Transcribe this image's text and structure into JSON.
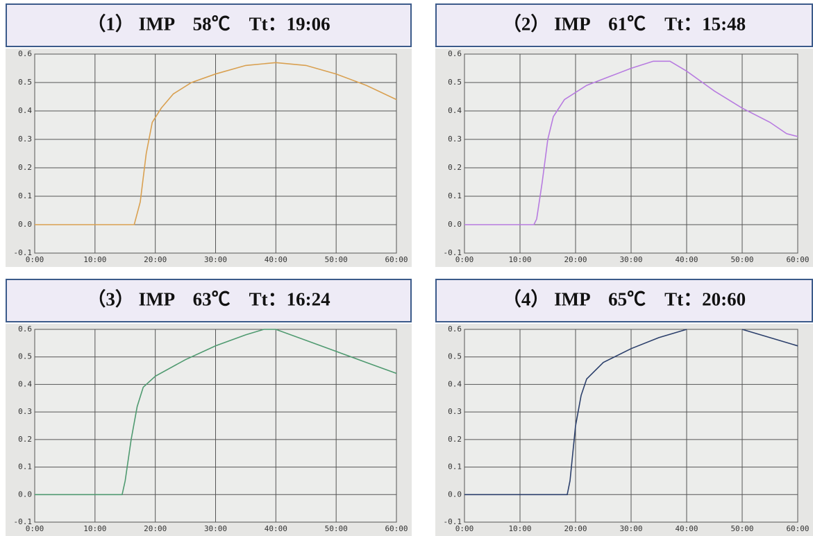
{
  "chart_data": [
    {
      "type": "line",
      "title": "（1） IMP　58℃　Tt：19:06",
      "color": "#d9a050",
      "grid": true,
      "x": [
        0,
        5,
        10,
        15,
        16.5,
        17.5,
        18.5,
        19.5,
        21,
        23,
        26,
        30,
        35,
        40,
        45,
        50,
        55,
        60
      ],
      "values": [
        0,
        0,
        0,
        0,
        0,
        0.08,
        0.25,
        0.36,
        0.41,
        0.46,
        0.5,
        0.53,
        0.56,
        0.57,
        0.56,
        0.53,
        0.49,
        0.44
      ],
      "xlim": [
        0,
        60
      ],
      "ylim": [
        -0.1,
        0.6
      ],
      "xticks": [
        {
          "value": 0,
          "label": "0:00"
        },
        {
          "value": 10,
          "label": "10:00"
        },
        {
          "value": 20,
          "label": "20:00"
        },
        {
          "value": 30,
          "label": "30:00"
        },
        {
          "value": 40,
          "label": "40:00"
        },
        {
          "value": 50,
          "label": "50:00"
        },
        {
          "value": 60,
          "label": "60:00"
        }
      ],
      "yticks": [
        -0.1,
        {
          "value": 0,
          "label": "0.0"
        },
        0.1,
        0.2,
        0.3,
        0.4,
        0.5,
        0.6
      ]
    },
    {
      "type": "line",
      "title": "（2） IMP　61℃　Tt：15:48",
      "color": "#b77be0",
      "grid": true,
      "x": [
        0,
        5,
        10,
        12.5,
        13,
        14,
        15,
        16,
        18,
        22,
        26,
        30,
        34,
        37,
        40,
        45,
        50,
        55,
        58,
        60
      ],
      "values": [
        0,
        0,
        0,
        0,
        0.02,
        0.15,
        0.3,
        0.38,
        0.44,
        0.49,
        0.52,
        0.55,
        0.575,
        0.575,
        0.54,
        0.47,
        0.41,
        0.36,
        0.32,
        0.31
      ],
      "xlim": [
        0,
        60
      ],
      "ylim": [
        -0.1,
        0.6
      ],
      "xticks": [
        {
          "value": 0,
          "label": "0:00"
        },
        {
          "value": 10,
          "label": "10:00"
        },
        {
          "value": 20,
          "label": "20:00"
        },
        {
          "value": 30,
          "label": "30:00"
        },
        {
          "value": 40,
          "label": "40:00"
        },
        {
          "value": 50,
          "label": "50:00"
        },
        {
          "value": 60,
          "label": "60:00"
        }
      ],
      "yticks": [
        -0.1,
        {
          "value": 0,
          "label": "0.0"
        },
        0.1,
        0.2,
        0.3,
        0.4,
        0.5,
        0.6
      ]
    },
    {
      "type": "line",
      "title": "（3） IMP　63℃　Tt：16:24",
      "color": "#4f9a70",
      "grid": true,
      "x": [
        0,
        5,
        10,
        14.5,
        15,
        16,
        17,
        18,
        20,
        25,
        30,
        35,
        38,
        40,
        45,
        50,
        55,
        60
      ],
      "values": [
        0,
        0,
        0,
        0,
        0.05,
        0.2,
        0.32,
        0.39,
        0.43,
        0.49,
        0.54,
        0.58,
        0.6,
        0.6,
        0.56,
        0.52,
        0.48,
        0.44
      ],
      "xlim": [
        0,
        60
      ],
      "ylim": [
        -0.1,
        0.6
      ],
      "xticks": [
        {
          "value": 0,
          "label": "0:00"
        },
        {
          "value": 10,
          "label": "10:00"
        },
        {
          "value": 20,
          "label": "20:00"
        },
        {
          "value": 30,
          "label": "30:00"
        },
        {
          "value": 40,
          "label": "40:00"
        },
        {
          "value": 50,
          "label": "50:00"
        },
        {
          "value": 60,
          "label": "60:00"
        }
      ],
      "yticks": [
        -0.1,
        {
          "value": 0,
          "label": "0.0"
        },
        0.1,
        0.2,
        0.3,
        0.4,
        0.5,
        0.6
      ]
    },
    {
      "type": "line",
      "title": "（4） IMP　65℃　Tt：20:60",
      "color": "#2b3f6b",
      "grid": true,
      "x": [
        0,
        5,
        10,
        15,
        18.5,
        19,
        19.5,
        20,
        21,
        22,
        25,
        30,
        35,
        40,
        45,
        50,
        55,
        60
      ],
      "values": [
        0,
        0,
        0,
        0,
        0,
        0.05,
        0.15,
        0.25,
        0.36,
        0.42,
        0.48,
        0.53,
        0.57,
        0.6,
        null,
        0.6,
        0.57,
        0.54
      ],
      "xlim": [
        0,
        60
      ],
      "ylim": [
        -0.1,
        0.6
      ],
      "xticks": [
        {
          "value": 0,
          "label": "0:00"
        },
        {
          "value": 10,
          "label": "10:00"
        },
        {
          "value": 20,
          "label": "20:00"
        },
        {
          "value": 30,
          "label": "30:00"
        },
        {
          "value": 40,
          "label": "40:00"
        },
        {
          "value": 50,
          "label": "50:00"
        },
        {
          "value": 60,
          "label": "60:00"
        }
      ],
      "yticks": [
        -0.1,
        {
          "value": 0,
          "label": "0.0"
        },
        0.1,
        0.2,
        0.3,
        0.4,
        0.5,
        0.6
      ]
    }
  ]
}
